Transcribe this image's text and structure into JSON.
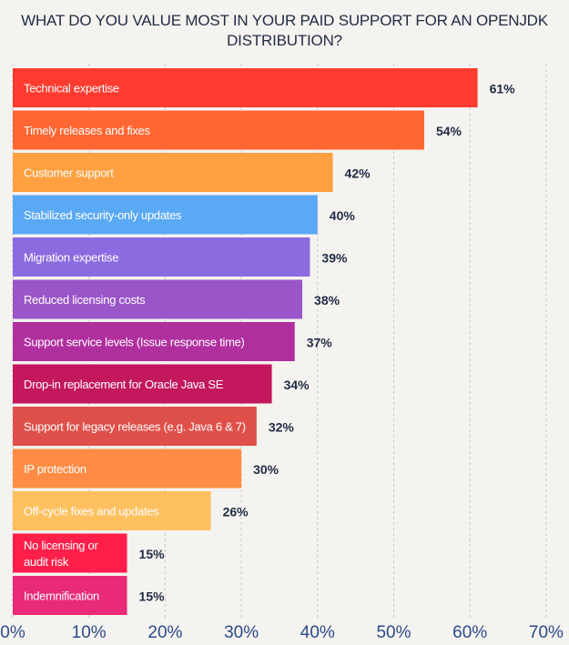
{
  "chart_data": {
    "type": "bar",
    "orientation": "horizontal",
    "title_lines": [
      "WHAT DO YOU VALUE MOST IN YOUR PAID SUPPORT FOR AN OPENJDK",
      "DISTRIBUTION?"
    ],
    "xlim": [
      0,
      70
    ],
    "xticks": [
      0,
      10,
      20,
      30,
      40,
      50,
      60,
      70
    ],
    "xtick_labels": [
      "0%",
      "10%",
      "20%",
      "30%",
      "40%",
      "50%",
      "60%",
      "70%"
    ],
    "grid": "vertical-dashed",
    "categories": [
      [
        "Technical expertise"
      ],
      [
        "Timely releases and fixes"
      ],
      [
        "Customer support"
      ],
      [
        "Stabilized security-only updates"
      ],
      [
        "Migration expertise"
      ],
      [
        "Reduced licensing costs"
      ],
      [
        "Support service levels (Issue response time)"
      ],
      [
        "Drop-in replacement for Oracle Java SE"
      ],
      [
        "Support for legacy releases (e.g.  Java 6 & 7)"
      ],
      [
        "IP protection"
      ],
      [
        "Off-cycle fixes and updates"
      ],
      [
        "No licensing or",
        "audit risk"
      ],
      [
        "Indemnification"
      ]
    ],
    "values": [
      61,
      54,
      42,
      40,
      39,
      38,
      37,
      34,
      32,
      30,
      26,
      15,
      15
    ],
    "value_labels": [
      "61%",
      "54%",
      "42%",
      "40%",
      "39%",
      "38%",
      "37%",
      "34%",
      "32%",
      "30%",
      "26%",
      "15%",
      "15%"
    ],
    "colors": [
      "#ff3b2f",
      "#ff6633",
      "#ffa040",
      "#5aa9f5",
      "#8c6be0",
      "#9a55c8",
      "#b02f9e",
      "#c4185e",
      "#e0504a",
      "#ff8c45",
      "#ffc060",
      "#ff1f4a",
      "#e82a78"
    ]
  }
}
